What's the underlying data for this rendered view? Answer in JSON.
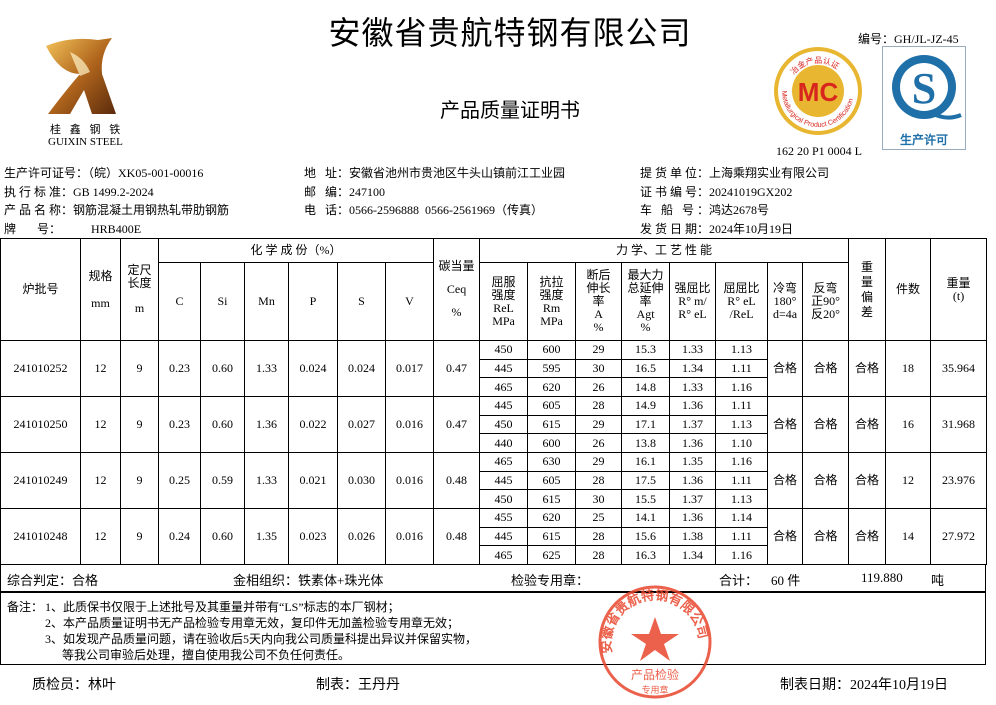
{
  "header": {
    "company_title": "安徽省贵航特钢有限公司",
    "doc_title": "产品质量证明书",
    "doc_code": "编号：GH/JL-JZ-45",
    "logo_text": "桂 鑫 钢 铁",
    "logo_text_en": "GUIXIN STEEL",
    "mc_badge": {
      "letters": "MC",
      "ring_cn": "冶金产品认证",
      "ring_en": "Metallurgical Product Certification",
      "code": "162 20 P1 0004 L"
    },
    "qs_badge": {
      "letter": "S",
      "caption": "生产许可"
    }
  },
  "info_left": [
    {
      "label": "生产许可证号：",
      "value": "（皖）XK05-001-00016"
    },
    {
      "label": "执 行 标 准：",
      "value": "GB 1499.2-2024"
    },
    {
      "label": "产 品 名 称：",
      "value": "钢筋混凝土用钢热轧带肋钢筋"
    },
    {
      "label": "牌       号：",
      "value": "HRB400E"
    }
  ],
  "info_mid": [
    {
      "label": "地   址：",
      "value": "安徽省池州市贵池区牛头山镇前江工业园"
    },
    {
      "label": "邮   编：",
      "value": "247100"
    },
    {
      "label": "电   话：",
      "value": "0566-2596888  0566-2561969（传真）"
    }
  ],
  "info_right": [
    {
      "label": "提 货 单 位：",
      "value": "上海乘翔实业有限公司"
    },
    {
      "label": "证 书 编 号：",
      "value": "20241019GX202"
    },
    {
      "label": "车   船   号 ：",
      "value": "鸿达2678号"
    },
    {
      "label": "发 货 日 期：",
      "value": "2024年10月19日"
    }
  ],
  "table": {
    "h_batch": "炉批号",
    "h_spec": "规格",
    "h_spec_unit": "mm",
    "h_len": "定尺长度",
    "h_len_unit": "m",
    "h_chem": "化 学 成 份（%）",
    "chem_cols": [
      "C",
      "Si",
      "Mn",
      "P",
      "S",
      "V"
    ],
    "h_ceq": "碳当量",
    "h_ceq_sym": "Ceq",
    "h_ceq_unit": "%",
    "h_mech": "力 学、工 艺 性 能",
    "mech_cols": [
      [
        "屈服",
        "强度",
        "ReL",
        "MPa"
      ],
      [
        "抗拉",
        "强度",
        "Rm",
        "MPa"
      ],
      [
        "断后",
        "伸长",
        "率",
        "A",
        "%"
      ],
      [
        "最大力",
        "总延伸",
        "率",
        "Agt",
        "%"
      ],
      [
        "强屈比",
        "R° m/",
        "R° eL"
      ],
      [
        "屈屈比",
        "R° eL",
        "/ReL"
      ],
      [
        "冷弯",
        "180°",
        "d=4a"
      ],
      [
        "反弯",
        "正90°",
        "反20°"
      ]
    ],
    "h_dev": "重量偏差",
    "h_count": "件数",
    "h_weight": "重量",
    "h_weight_unit": "(t)",
    "rows": [
      {
        "batch": "241010252",
        "spec": "12",
        "len": "9",
        "chem": [
          "0.23",
          "0.60",
          "1.33",
          "0.024",
          "0.024",
          "0.017"
        ],
        "ceq": "0.47",
        "mech": [
          [
            "450",
            "600",
            "29",
            "15.3",
            "1.33",
            "1.13"
          ],
          [
            "445",
            "595",
            "30",
            "16.5",
            "1.34",
            "1.11"
          ],
          [
            "465",
            "620",
            "26",
            "14.8",
            "1.33",
            "1.16"
          ]
        ],
        "bend": "合格",
        "rebend": "合格",
        "dev": "合格",
        "count": "18",
        "weight": "35.964"
      },
      {
        "batch": "241010250",
        "spec": "12",
        "len": "9",
        "chem": [
          "0.23",
          "0.60",
          "1.36",
          "0.022",
          "0.027",
          "0.016"
        ],
        "ceq": "0.47",
        "mech": [
          [
            "445",
            "605",
            "28",
            "14.9",
            "1.36",
            "1.11"
          ],
          [
            "450",
            "615",
            "29",
            "17.1",
            "1.37",
            "1.13"
          ],
          [
            "440",
            "600",
            "26",
            "13.8",
            "1.36",
            "1.10"
          ]
        ],
        "bend": "合格",
        "rebend": "合格",
        "dev": "合格",
        "count": "16",
        "weight": "31.968"
      },
      {
        "batch": "241010249",
        "spec": "12",
        "len": "9",
        "chem": [
          "0.25",
          "0.59",
          "1.33",
          "0.021",
          "0.030",
          "0.016"
        ],
        "ceq": "0.48",
        "mech": [
          [
            "465",
            "630",
            "29",
            "16.1",
            "1.35",
            "1.16"
          ],
          [
            "445",
            "605",
            "28",
            "17.5",
            "1.36",
            "1.11"
          ],
          [
            "450",
            "615",
            "30",
            "15.5",
            "1.37",
            "1.13"
          ]
        ],
        "bend": "合格",
        "rebend": "合格",
        "dev": "合格",
        "count": "12",
        "weight": "23.976"
      },
      {
        "batch": "241010248",
        "spec": "12",
        "len": "9",
        "chem": [
          "0.24",
          "0.60",
          "1.35",
          "0.023",
          "0.026",
          "0.016"
        ],
        "ceq": "0.48",
        "mech": [
          [
            "455",
            "620",
            "25",
            "14.1",
            "1.36",
            "1.14"
          ],
          [
            "445",
            "615",
            "28",
            "15.6",
            "1.38",
            "1.11"
          ],
          [
            "465",
            "625",
            "28",
            "16.3",
            "1.34",
            "1.16"
          ]
        ],
        "bend": "合格",
        "rebend": "合格",
        "dev": "合格",
        "count": "14",
        "weight": "27.972"
      }
    ]
  },
  "summary": {
    "judgement": "综合判定：合格",
    "structure": "金相组织：铁素体+珠光体",
    "stamp_label": "检验专用章：",
    "total_label": "合计：",
    "total_count": "60 件",
    "total_weight": "119.880",
    "weight_unit": "吨"
  },
  "remarks": {
    "label": "备注：",
    "lines": [
      "1、此质保书仅限于上述批号及其重量并带有“LS”标志的本厂钢材；",
      "2、本产品质量证明书无产品检验专用章无效，复印件无加盖检验专用章无效；",
      "3、如发现产品质量问题，请在验收后5天内向我公司质量科提出异议并保留实物，",
      "等我公司审验后处理，擅自使用我公司不负任何责任。"
    ]
  },
  "stamp": {
    "ring": "安徽省贵航特钢有限公司",
    "center1": "产品检验",
    "center2": "专用章",
    "color": "#e8462c"
  },
  "footer": {
    "inspector": "质检员：林叶",
    "preparer": "制表：王丹丹",
    "date": "制表日期：2024年10月19日"
  }
}
